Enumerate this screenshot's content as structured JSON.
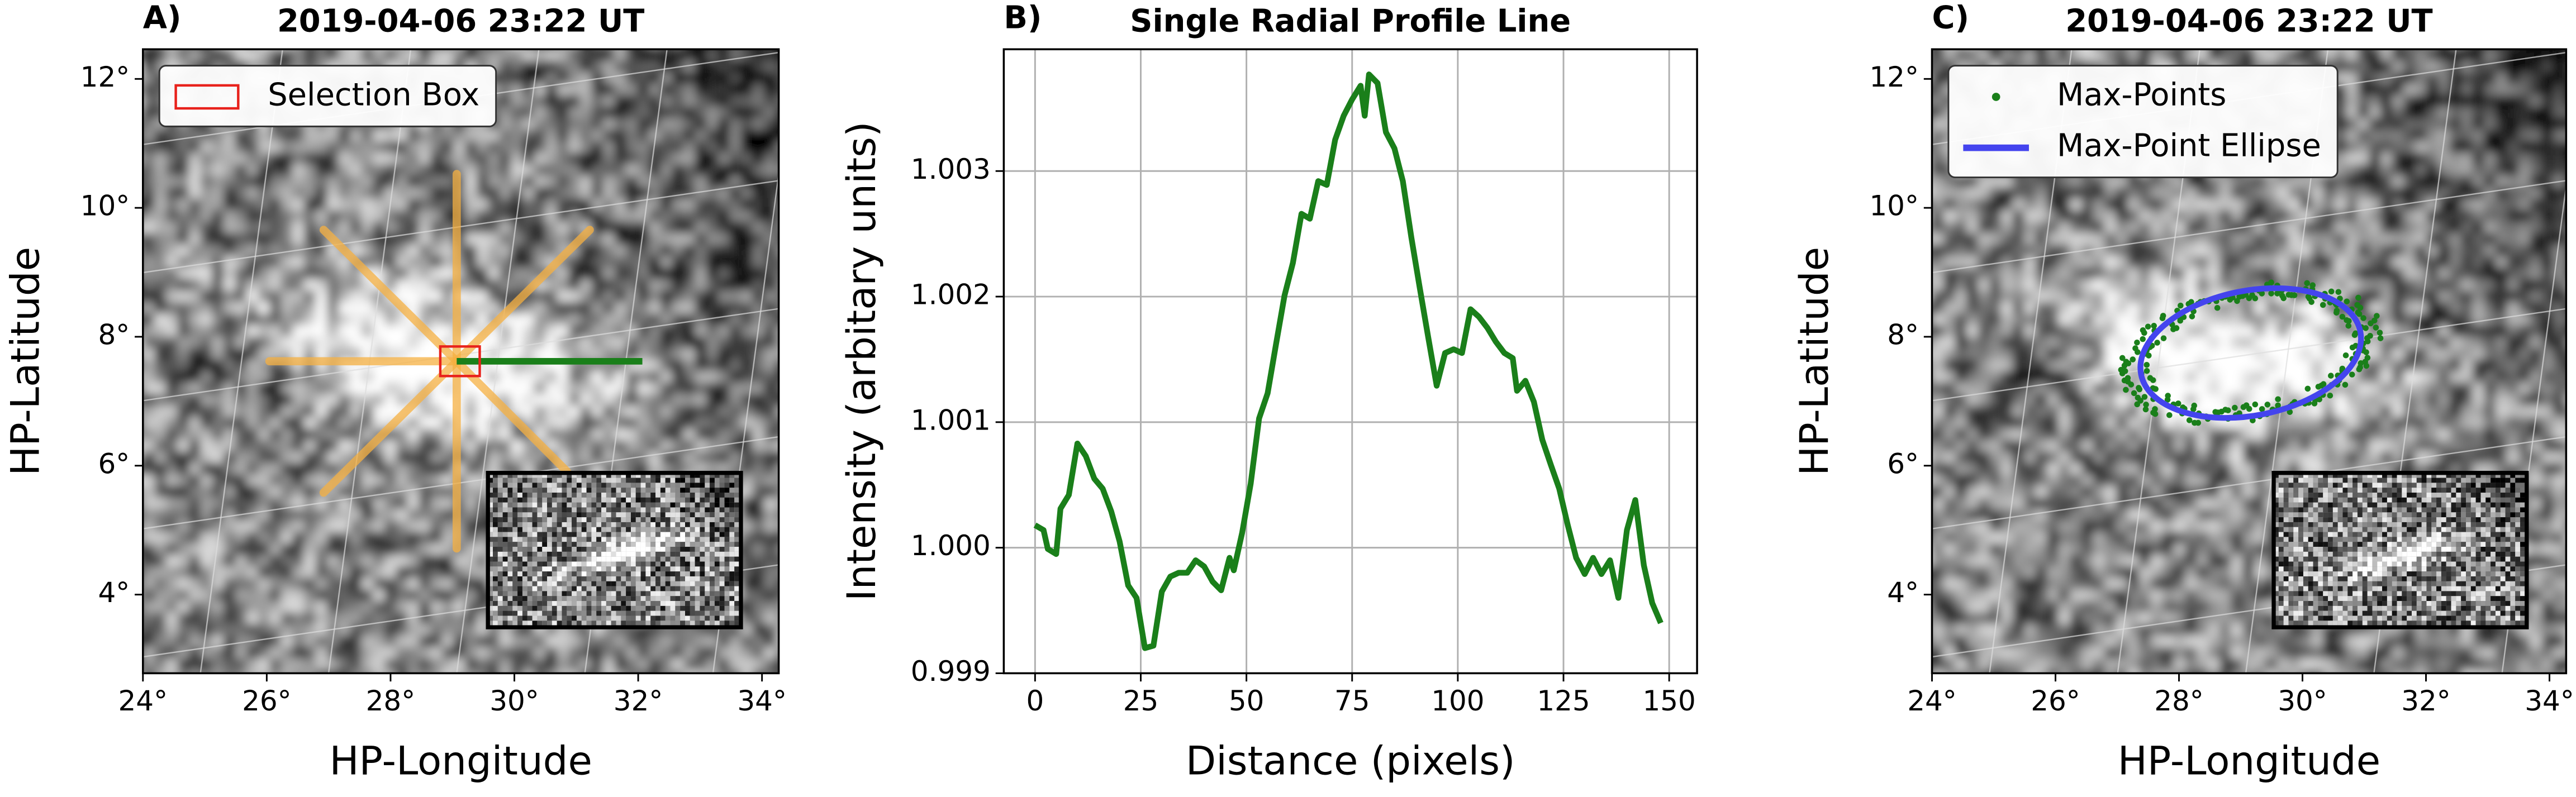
{
  "chart_data": [
    {
      "type": "image",
      "panel_label": "A)",
      "title": "2019-04-06 23:22 UT",
      "xlabel": "HP-Longitude",
      "ylabel": "HP-Latitude",
      "xlim": [
        24,
        34.27
      ],
      "ylim": [
        2.78,
        12.46
      ],
      "xticks": [
        {
          "value": 24,
          "label": "24°"
        },
        {
          "value": 26,
          "label": "26°"
        },
        {
          "value": 28,
          "label": "28°"
        },
        {
          "value": 30,
          "label": "30°"
        },
        {
          "value": 32,
          "label": "32°"
        },
        {
          "value": 34,
          "label": "34°"
        }
      ],
      "yticks": [
        {
          "value": 4,
          "label": "4°"
        },
        {
          "value": 6,
          "label": "6°"
        },
        {
          "value": 8,
          "label": "8°"
        },
        {
          "value": 10,
          "label": "10°"
        },
        {
          "value": 12,
          "label": "12°"
        }
      ],
      "legend": [
        {
          "name": "Selection Box",
          "color": "#e8221c",
          "marker": "rect"
        }
      ]
    },
    {
      "type": "line",
      "panel_label": "B)",
      "title": "Single Radial Profile Line",
      "xlabel": "Distance (pixels)",
      "ylabel": "Intensity (arbitary units)",
      "xlim": [
        -7.4,
        156.6
      ],
      "ylim": [
        0.999,
        1.00397
      ],
      "xticks": [
        0,
        25,
        50,
        75,
        100,
        125,
        150
      ],
      "yticks": [
        0.999,
        {
          "value": 1,
          "label": "1.000"
        },
        1.001,
        1.002,
        1.003
      ],
      "grid": true,
      "color": "#1a7f1a",
      "x": [
        0,
        2,
        3,
        5,
        6,
        8,
        10,
        12,
        14,
        16,
        18,
        20,
        22,
        24,
        26,
        28,
        30,
        32,
        34,
        36,
        38,
        40,
        42,
        44,
        46,
        47,
        49,
        51,
        53,
        55,
        57,
        59,
        61,
        63,
        65,
        67,
        69,
        71,
        73,
        75,
        77,
        78,
        79,
        81,
        83,
        85,
        87,
        89,
        91,
        93,
        95,
        97,
        99,
        101,
        103,
        105,
        107,
        109,
        111,
        113,
        114,
        116,
        118,
        120,
        122,
        124,
        126,
        128,
        130,
        132,
        134,
        136,
        138,
        140,
        142,
        144,
        146,
        148
      ],
      "values": [
        1.00018,
        1.00014,
        0.99999,
        0.99995,
        1.00031,
        1.00042,
        1.00083,
        1.00073,
        1.00055,
        1.00047,
        1.00029,
        1.00005,
        0.9997,
        0.9996,
        0.9992,
        0.99922,
        0.99965,
        0.99977,
        0.9998,
        0.9998,
        0.9999,
        0.99985,
        0.99973,
        0.99966,
        0.99992,
        0.99982,
        1.00012,
        1.00051,
        1.00103,
        1.00123,
        1.00162,
        1.00201,
        1.00227,
        1.00266,
        1.00262,
        1.00292,
        1.00289,
        1.00325,
        1.00344,
        1.00357,
        1.00368,
        1.00344,
        1.00377,
        1.0037,
        1.00331,
        1.00318,
        1.00292,
        1.00247,
        1.00207,
        1.00168,
        1.00129,
        1.00155,
        1.00158,
        1.00155,
        1.0019,
        1.00184,
        1.00175,
        1.00164,
        1.00155,
        1.00151,
        1.00125,
        1.00133,
        1.00116,
        1.00086,
        1.00066,
        1.00047,
        1.00018,
        0.99992,
        0.99979,
        0.99992,
        0.99979,
        0.9999,
        0.9996,
        1.00014,
        1.00038,
        0.99986,
        0.99956,
        0.9994
      ]
    },
    {
      "type": "image",
      "panel_label": "C)",
      "title": "2019-04-06 23:22 UT",
      "xlabel": "HP-Longitude",
      "ylabel": "HP-Latitude",
      "xlim": [
        24,
        34.27
      ],
      "ylim": [
        2.78,
        12.46
      ],
      "xticks": [
        {
          "value": 24,
          "label": "24°"
        },
        {
          "value": 26,
          "label": "26°"
        },
        {
          "value": 28,
          "label": "28°"
        },
        {
          "value": 30,
          "label": "30°"
        },
        {
          "value": 32,
          "label": "32°"
        },
        {
          "value": 34,
          "label": "34°"
        }
      ],
      "yticks": [
        {
          "value": 4,
          "label": "4°"
        },
        {
          "value": 6,
          "label": "6°"
        },
        {
          "value": 8,
          "label": "8°"
        },
        {
          "value": 10,
          "label": "10°"
        },
        {
          "value": 12,
          "label": "12°"
        }
      ],
      "legend": [
        {
          "name": "Max-Points",
          "color": "#1a7f1a",
          "marker": "dot"
        },
        {
          "name": "Max-Point Ellipse",
          "color": "#4444ee",
          "marker": "line"
        }
      ]
    }
  ]
}
